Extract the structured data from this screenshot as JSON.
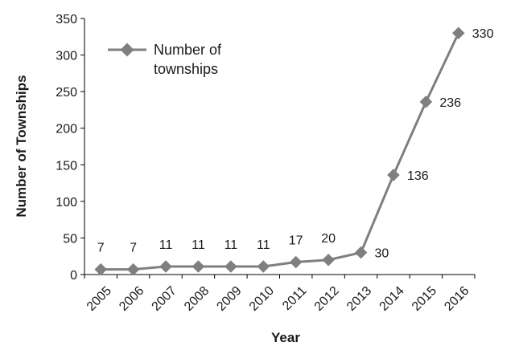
{
  "chart_data": {
    "type": "line",
    "xlabel": "Year",
    "ylabel": "Number of Townships",
    "ylim": [
      0,
      350
    ],
    "y_ticks": [
      0,
      50,
      100,
      150,
      200,
      250,
      300,
      350
    ],
    "grid": false,
    "legend_position": "top-left",
    "x": [
      "2005",
      "2006",
      "2007",
      "2008",
      "2009",
      "2010",
      "2011",
      "2012",
      "2013",
      "2014",
      "2015",
      "2016"
    ],
    "series": [
      {
        "name": "Number of townships",
        "legend_lines": [
          "Number of",
          "townships"
        ],
        "values": [
          7,
          7,
          11,
          11,
          11,
          11,
          17,
          20,
          30,
          136,
          236,
          330
        ],
        "color": "#7f7f7f",
        "marker": "diamond"
      }
    ]
  }
}
